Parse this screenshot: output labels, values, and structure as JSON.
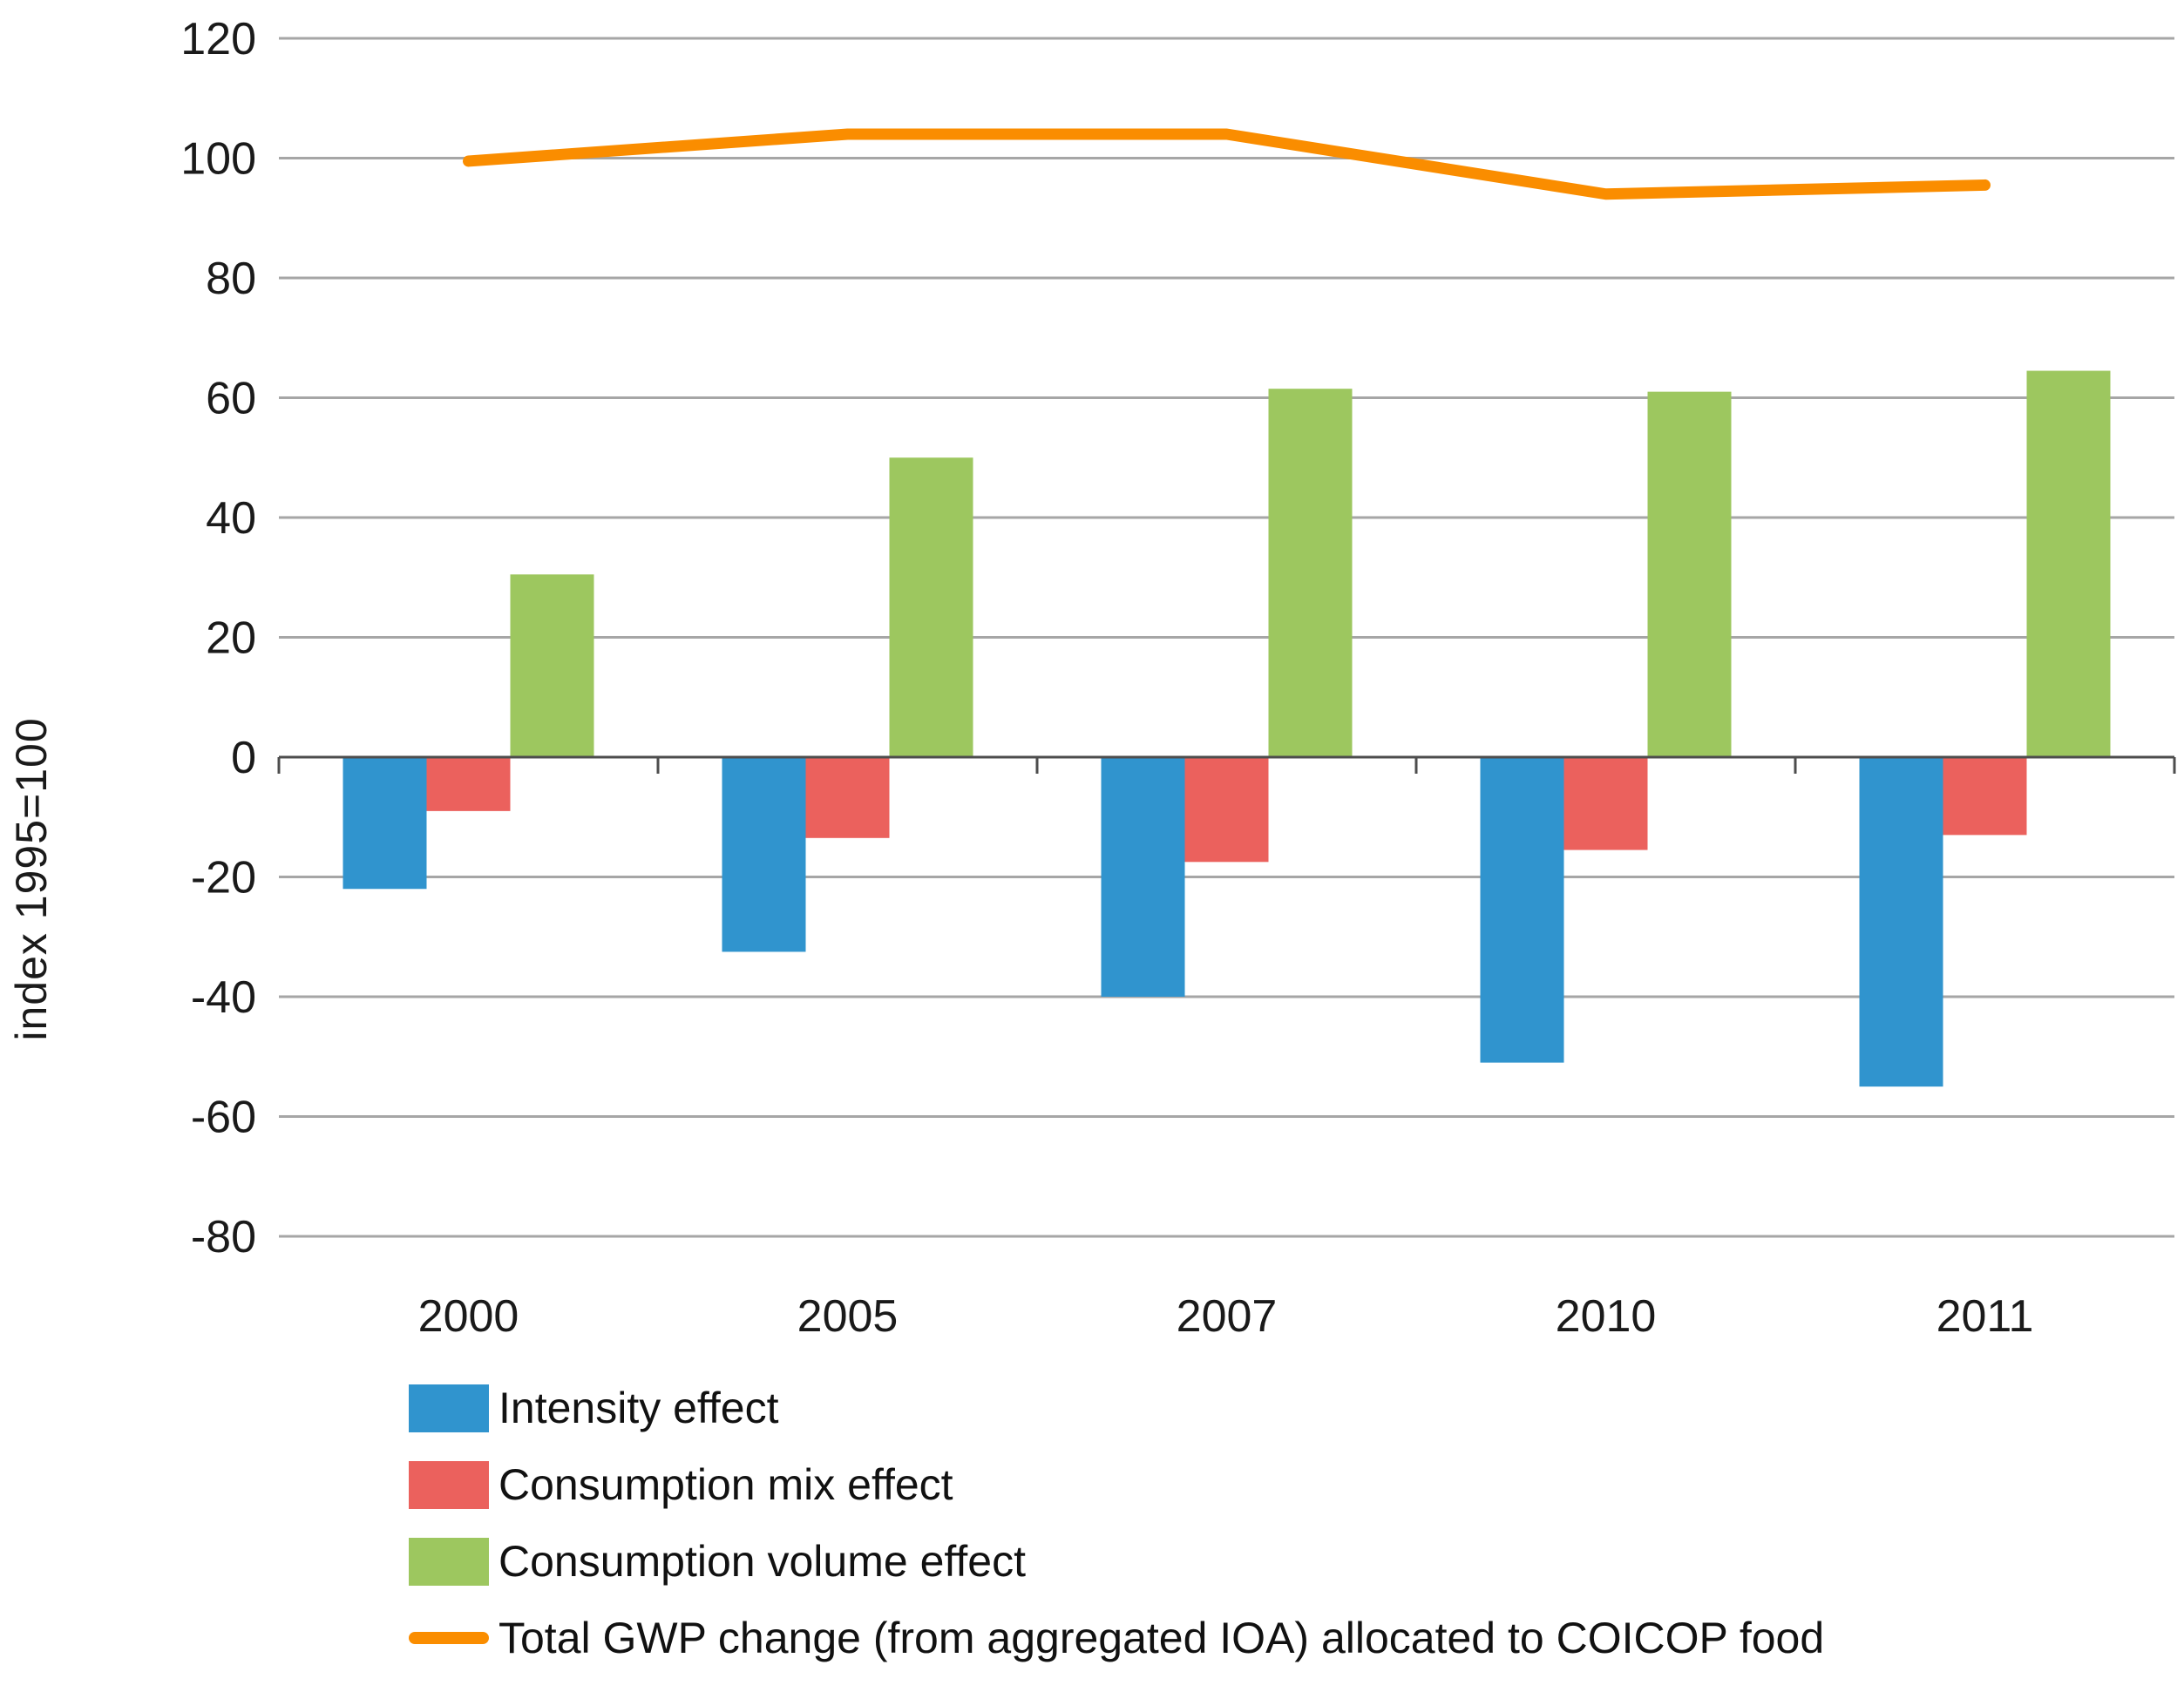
{
  "chart_data": {
    "type": "bar+line",
    "title": "",
    "categories": [
      "2000",
      "2005",
      "2007",
      "2010",
      "2011"
    ],
    "series": [
      {
        "name": "Intensity effect",
        "type": "bar",
        "color": "#3094CE",
        "values": [
          -22,
          -32.5,
          -40,
          -51,
          -55
        ]
      },
      {
        "name": "Consumption mix effect",
        "type": "bar",
        "color": "#EB615D",
        "values": [
          -9,
          -13.5,
          -17.5,
          -15.5,
          -13
        ]
      },
      {
        "name": "Consumption volume effect",
        "type": "bar",
        "color": "#9DC75F",
        "values": [
          30.5,
          50,
          61.5,
          61,
          64.5
        ]
      },
      {
        "name": "Total GWP change (from aggregated IOA) allocated to COICOP food",
        "type": "line",
        "color": "#FA8D00",
        "values": [
          99.5,
          104,
          104,
          94,
          95.5
        ]
      }
    ],
    "xlabel": "",
    "ylabel": "index 1995=100",
    "ylim": [
      -80,
      120
    ],
    "y_ticks": [
      120,
      100,
      80,
      60,
      40,
      20,
      0,
      -20,
      -40,
      -60,
      -80
    ],
    "grid": true,
    "legend_position": "bottom-left"
  },
  "style": {
    "gridline_color": "#A6A6A6",
    "axis_color": "#4D4D4D",
    "text_color": "#1a1a1a",
    "background": "#ffffff"
  }
}
